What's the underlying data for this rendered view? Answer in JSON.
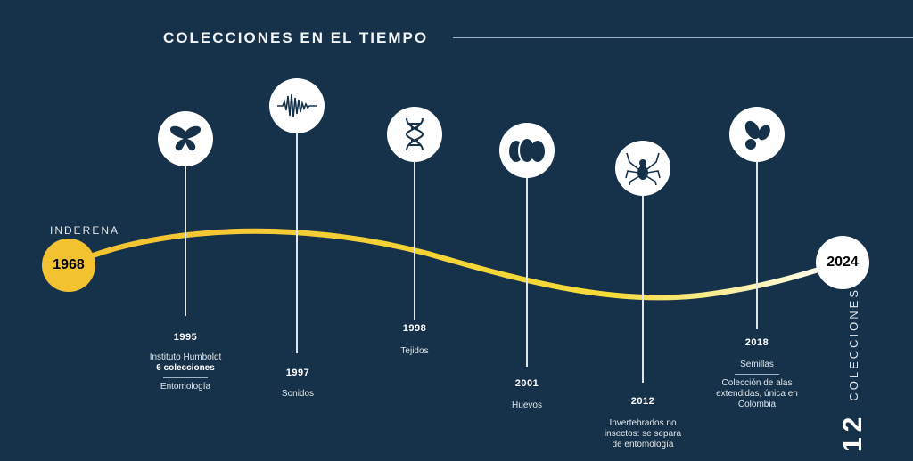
{
  "title": "COLECCIONES EN EL TIEMPO",
  "start": {
    "label": "INDERENA",
    "year": "1968"
  },
  "end": {
    "year": "2024"
  },
  "total": {
    "number": "12",
    "label": "COLECCIONES"
  },
  "colors": {
    "background": "#16324a",
    "accent": "#f2c230"
  },
  "events": [
    {
      "year": "1995",
      "icon": "butterfly-icon",
      "lines": [
        "Instituto Humboldt",
        "6 colecciones"
      ],
      "sub": "Entomología"
    },
    {
      "year": "1997",
      "icon": "sound-wave-icon",
      "lines": [
        "Sonidos"
      ]
    },
    {
      "year": "1998",
      "icon": "dna-icon",
      "lines": [
        "Tejidos"
      ]
    },
    {
      "year": "2001",
      "icon": "eggs-icon",
      "lines": [
        "Huevos"
      ]
    },
    {
      "year": "2012",
      "icon": "spider-icon",
      "lines": [
        "Invertebrados no",
        "insectos: se separa",
        "de entomología"
      ]
    },
    {
      "year": "2018",
      "icon": "seeds-icon",
      "lines": [
        "Semillas"
      ],
      "sub": "Colección de alas extendidas, única en Colombia"
    }
  ]
}
